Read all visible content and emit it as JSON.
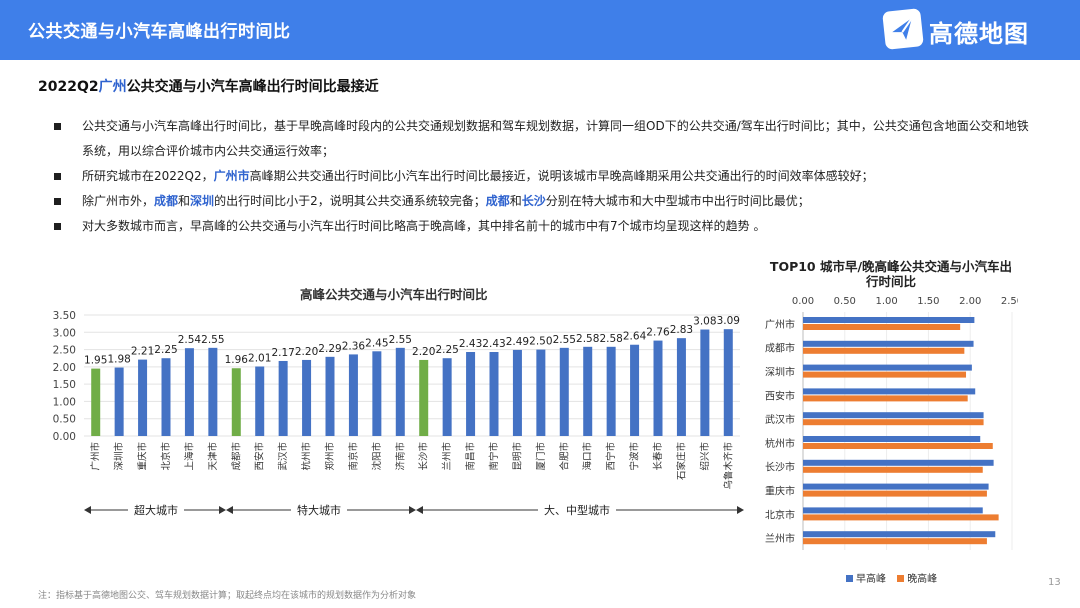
{
  "header": {
    "title": "公共交通与小汽车高峰出行时间比",
    "logo_text": "高德地图",
    "header_color": "#3f7fe9"
  },
  "subtitle": {
    "prefix": "2022Q2",
    "highlight": "广州",
    "suffix": "公共交通与小汽车高峰出行时间比最接近"
  },
  "bullets": {
    "b1": "公共交通与小汽车高峰出行时间比，基于早晚高峰时段内的公共交通规划数据和驾车规划数据，计算同一组OD下的公共交通/驾车出行时间比；其中，公共交通包含地面公交和地铁系统，用以综合评价城市内公共交通运行效率；",
    "b2_a": "所研究城市在2022Q2，",
    "b2_hl": "广州市",
    "b2_b": "高峰期公共交通出行时间比小汽车出行时间比最接近，说明该城市早晚高峰期采用公共交通出行的时间效率体感较好；",
    "b3_a": "除广州市外，",
    "b3_hl1": "成都",
    "b3_b": "和",
    "b3_hl2": "深圳",
    "b3_c": "的出行时间比小于2，说明其公共交通系统较完备；",
    "b3_hl3": "成都",
    "b3_d": "和",
    "b3_hl4": "长沙",
    "b3_e": "分别在特大城市和大中型城市中出行时间比最优；",
    "b4": "对大多数城市而言，早高峰的公共交通与小汽车出行时间比略高于晚高峰，其中排名前十的城市中有7个城市均呈现这样的趋势 。"
  },
  "city_groups": [
    "超大城市",
    "特大城市",
    "大、中型城市"
  ],
  "legend": {
    "early": "早高峰",
    "late": "晚高峰"
  },
  "footnote": "注：指标基于高德地图公交、驾车规划数据计算；取起终点均在该城市的规划数据作为分析对象",
  "page_number": "13",
  "chart_data": [
    {
      "type": "bar",
      "title": "高峰公共交通与小汽车出行时间比",
      "categories": [
        "广州市",
        "深圳市",
        "重庆市",
        "北京市",
        "上海市",
        "天津市",
        "成都市",
        "西安市",
        "武汉市",
        "杭州市",
        "郑州市",
        "南京市",
        "沈阳市",
        "济南市",
        "长沙市",
        "兰州市",
        "南昌市",
        "南宁市",
        "昆明市",
        "厦门市",
        "合肥市",
        "海口市",
        "西宁市",
        "宁波市",
        "长春市",
        "石家庄市",
        "绍兴市",
        "乌鲁木齐市"
      ],
      "values": [
        1.95,
        1.98,
        2.21,
        2.25,
        2.54,
        2.55,
        1.96,
        2.01,
        2.17,
        2.2,
        2.29,
        2.36,
        2.45,
        2.55,
        2.2,
        2.25,
        2.43,
        2.43,
        2.49,
        2.5,
        2.55,
        2.58,
        2.58,
        2.64,
        2.76,
        2.83,
        3.08,
        3.09
      ],
      "highlight_categories": [
        "广州市",
        "成都市",
        "长沙市"
      ],
      "colors": {
        "default": "#4472c4",
        "highlight": "#70ad47"
      },
      "y_ticks": [
        "0.00",
        "0.50",
        "1.00",
        "1.50",
        "2.00",
        "2.50",
        "3.00",
        "3.50"
      ],
      "ylim": [
        0,
        3.5
      ],
      "grid": true
    },
    {
      "type": "bar",
      "orientation": "horizontal",
      "title": "TOP10 城市早/晚高峰公共交通与小汽车出行时间比",
      "categories": [
        "广州市",
        "成都市",
        "深圳市",
        "西安市",
        "武汉市",
        "杭州市",
        "长沙市",
        "重庆市",
        "北京市",
        "兰州市"
      ],
      "series": [
        {
          "name": "早高峰",
          "values": [
            2.05,
            2.04,
            2.02,
            2.06,
            2.16,
            2.12,
            2.28,
            2.22,
            2.15,
            2.3
          ],
          "color": "#4472c4"
        },
        {
          "name": "晚高峰",
          "values": [
            1.88,
            1.93,
            1.95,
            1.97,
            2.16,
            2.27,
            2.15,
            2.2,
            2.34,
            2.2
          ],
          "color": "#ed7d31"
        }
      ],
      "x_ticks": [
        "0.00",
        "0.50",
        "1.00",
        "1.50",
        "2.00",
        "2.50"
      ],
      "xlim": [
        0,
        2.5
      ],
      "legend_position": "bottom",
      "grid": true
    }
  ]
}
